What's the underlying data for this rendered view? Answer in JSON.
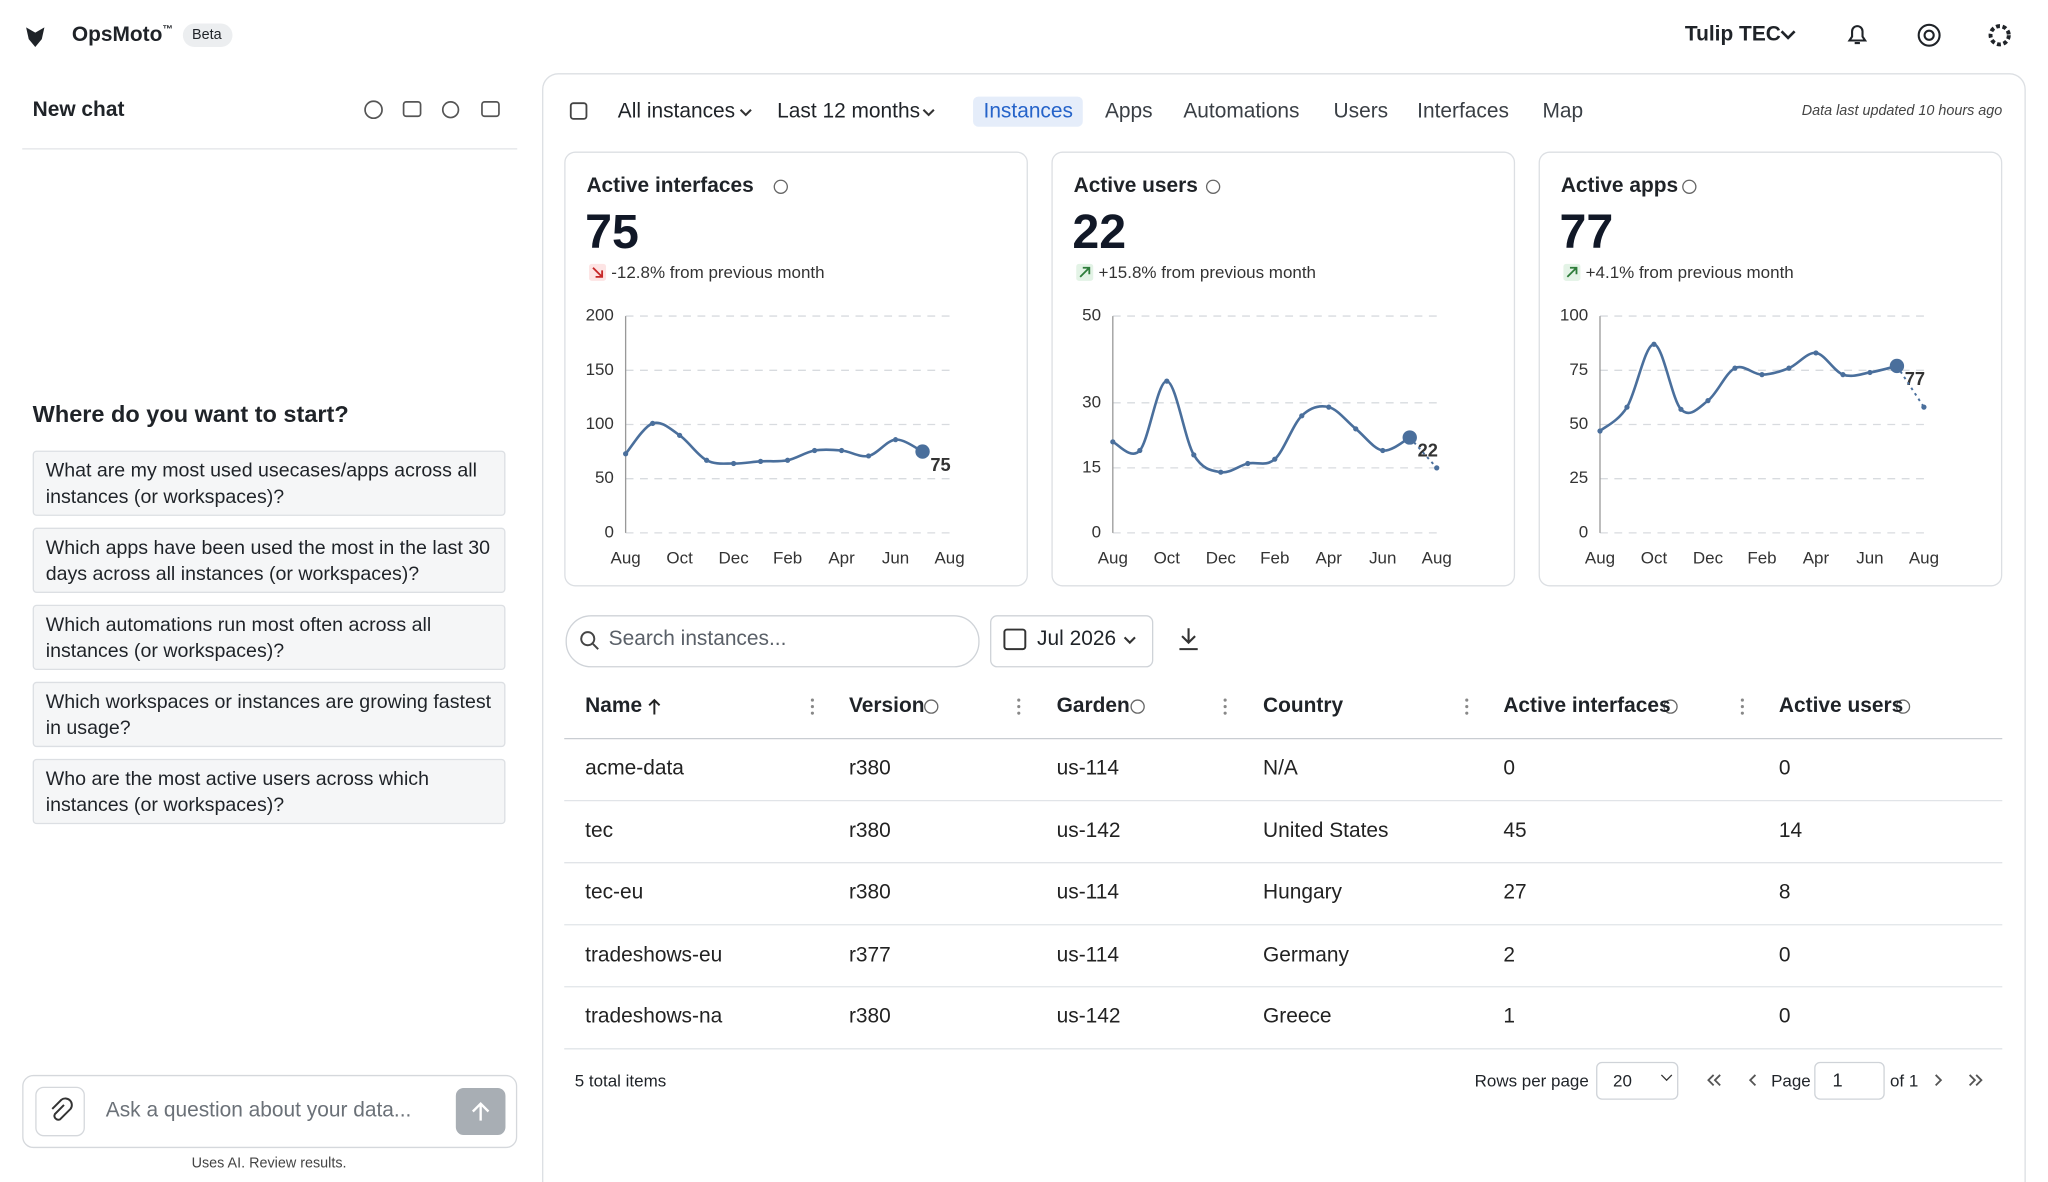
{
  "header": {
    "app": "OpsMoto",
    "trademark": "™",
    "badge": "Beta",
    "org": "Tulip TEC"
  },
  "chat": {
    "title": "New chat",
    "prompt": "Where do you want to start?",
    "suggestions": [
      "What are my most used usecases/apps across all instances (or workspaces)?",
      "Which apps have been used the most in the last 30 days across all instances (or workspaces)?",
      "Which automations run most often across all instances (or workspaces)?",
      "Which workspaces or instances are growing fastest in usage?",
      "Who are the most active users across which instances (or workspaces)?"
    ],
    "placeholder": "Ask a question about your data...",
    "disclaimer": "Uses AI. Review results."
  },
  "toolbar": {
    "instances": "All instances",
    "range": "Last 12 months",
    "tabs": [
      "Instances",
      "Apps",
      "Automations",
      "Users",
      "Interfaces",
      "Map"
    ],
    "active_tab": 0,
    "updated": "Data last updated 10 hours ago"
  },
  "chart_data": [
    {
      "type": "line",
      "title": "Active interfaces",
      "value": 75,
      "change": "-12.8% from previous month",
      "trend": "down",
      "color": "#4a6f9c",
      "categories": [
        "Aug",
        null,
        "Oct",
        null,
        "Dec",
        null,
        "Feb",
        null,
        "Apr",
        null,
        "Jun",
        null,
        "Aug"
      ],
      "values": [
        73,
        101,
        90,
        67,
        64,
        66,
        67,
        76,
        76,
        71,
        86,
        75,
        null
      ],
      "ylim": [
        0,
        200
      ],
      "yticks": [
        0,
        50,
        100,
        150,
        200
      ],
      "grid": true
    },
    {
      "type": "line",
      "title": "Active users",
      "value": 22,
      "change": "+15.8% from previous month",
      "trend": "up",
      "color": "#4a6f9c",
      "categories": [
        "Aug",
        null,
        "Oct",
        null,
        "Dec",
        null,
        "Feb",
        null,
        "Apr",
        null,
        "Jun",
        null,
        "Aug"
      ],
      "values": [
        21,
        19,
        35,
        18,
        14,
        16,
        17,
        27,
        29,
        24,
        19,
        22,
        15
      ],
      "ylim": [
        0,
        50
      ],
      "yticks": [
        0,
        15,
        30,
        50
      ],
      "grid": true
    },
    {
      "type": "line",
      "title": "Active apps",
      "value": 77,
      "change": "+4.1% from previous month",
      "trend": "up",
      "color": "#4a6f9c",
      "categories": [
        "Aug",
        null,
        "Oct",
        null,
        "Dec",
        null,
        "Feb",
        null,
        "Apr",
        null,
        "Jun",
        null,
        "Aug"
      ],
      "values": [
        47,
        58,
        87,
        57,
        61,
        76,
        73,
        76,
        83,
        73,
        74,
        77,
        58
      ],
      "ylim": [
        0,
        100
      ],
      "yticks": [
        0,
        25,
        50,
        75,
        100
      ],
      "grid": true
    }
  ],
  "filters": {
    "search": "Search instances...",
    "month": "Jul 2026"
  },
  "table": {
    "columns": [
      "Name",
      "Version",
      "Garden",
      "Country",
      "Active interfaces",
      "Active users"
    ],
    "rows": [
      [
        "acme-data",
        "r380",
        "us-114",
        "N/A",
        0,
        0
      ],
      [
        "tec",
        "r380",
        "us-142",
        "United States",
        45,
        14
      ],
      [
        "tec-eu",
        "r380",
        "us-114",
        "Hungary",
        27,
        8
      ],
      [
        "tradeshows-eu",
        "r377",
        "us-114",
        "Germany",
        2,
        0
      ],
      [
        "tradeshows-na",
        "r380",
        "us-142",
        "Greece",
        1,
        0
      ]
    ]
  },
  "footer": {
    "total": "5 total items",
    "rows_label": "Rows per page",
    "rows_value": "20",
    "page_label": "Page",
    "page": "1",
    "of": "of 1"
  }
}
